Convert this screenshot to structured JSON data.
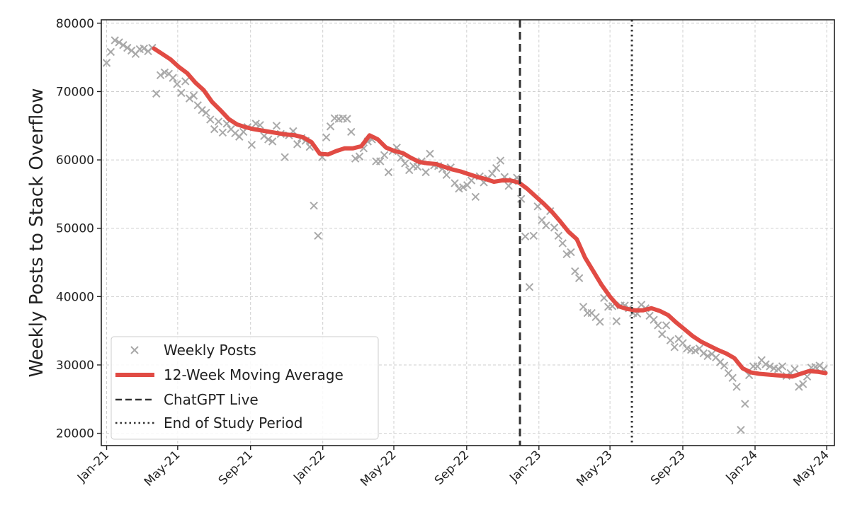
{
  "chart_data": {
    "type": "scatter",
    "title": "",
    "xlabel": "",
    "ylabel": "Weekly Posts to Stack Overflow",
    "ylim": [
      18200,
      80500
    ],
    "yticks": [
      20000,
      30000,
      40000,
      50000,
      60000,
      70000,
      80000
    ],
    "xlim": [
      "2020-12-23",
      "2024-05-14"
    ],
    "xticks": [
      {
        "date": "2021-01-01",
        "label": "Jan-21"
      },
      {
        "date": "2021-05-01",
        "label": "May-21"
      },
      {
        "date": "2021-09-01",
        "label": "Sep-21"
      },
      {
        "date": "2022-01-01",
        "label": "Jan-22"
      },
      {
        "date": "2022-05-01",
        "label": "May-22"
      },
      {
        "date": "2022-09-01",
        "label": "Sep-22"
      },
      {
        "date": "2023-01-01",
        "label": "Jan-23"
      },
      {
        "date": "2023-05-01",
        "label": "May-23"
      },
      {
        "date": "2023-09-01",
        "label": "Sep-23"
      },
      {
        "date": "2024-01-01",
        "label": "Jan-24"
      },
      {
        "date": "2024-05-01",
        "label": "May-24"
      }
    ],
    "grid": true,
    "legend_position": "bottom-left",
    "series": [
      {
        "name": "Weekly Posts",
        "type": "scatter",
        "color": "#a9a9a9",
        "points": [
          [
            "2021-01-01",
            74200
          ],
          [
            "2021-01-08",
            75800
          ],
          [
            "2021-01-15",
            77500
          ],
          [
            "2021-01-22",
            77200
          ],
          [
            "2021-01-29",
            76800
          ],
          [
            "2021-02-05",
            76400
          ],
          [
            "2021-02-12",
            76000
          ],
          [
            "2021-02-19",
            75500
          ],
          [
            "2021-02-26",
            76200
          ],
          [
            "2021-03-05",
            76300
          ],
          [
            "2021-03-12",
            75900
          ],
          [
            "2021-03-19",
            76400
          ],
          [
            "2021-03-26",
            69700
          ],
          [
            "2021-04-02",
            72400
          ],
          [
            "2021-04-09",
            72800
          ],
          [
            "2021-04-16",
            72600
          ],
          [
            "2021-04-23",
            72000
          ],
          [
            "2021-04-30",
            71100
          ],
          [
            "2021-05-07",
            69800
          ],
          [
            "2021-05-14",
            71500
          ],
          [
            "2021-05-21",
            69000
          ],
          [
            "2021-05-28",
            69400
          ],
          [
            "2021-06-04",
            68000
          ],
          [
            "2021-06-11",
            67300
          ],
          [
            "2021-06-18",
            66900
          ],
          [
            "2021-06-25",
            65900
          ],
          [
            "2021-07-02",
            64500
          ],
          [
            "2021-07-09",
            65600
          ],
          [
            "2021-07-16",
            64000
          ],
          [
            "2021-07-23",
            65300
          ],
          [
            "2021-07-30",
            64500
          ],
          [
            "2021-08-06",
            63900
          ],
          [
            "2021-08-13",
            63400
          ],
          [
            "2021-08-20",
            64100
          ],
          [
            "2021-08-27",
            64800
          ],
          [
            "2021-09-03",
            62200
          ],
          [
            "2021-09-10",
            65300
          ],
          [
            "2021-09-17",
            65100
          ],
          [
            "2021-09-24",
            63500
          ],
          [
            "2021-10-01",
            63000
          ],
          [
            "2021-10-08",
            62700
          ],
          [
            "2021-10-15",
            65000
          ],
          [
            "2021-10-22",
            63800
          ],
          [
            "2021-10-29",
            60400
          ],
          [
            "2021-11-05",
            63600
          ],
          [
            "2021-11-12",
            64200
          ],
          [
            "2021-11-19",
            62300
          ],
          [
            "2021-11-26",
            63200
          ],
          [
            "2021-12-03",
            62800
          ],
          [
            "2021-12-10",
            61900
          ],
          [
            "2021-12-17",
            53300
          ],
          [
            "2021-12-24",
            48900
          ],
          [
            "2021-12-31",
            60400
          ],
          [
            "2022-01-07",
            63300
          ],
          [
            "2022-01-14",
            64900
          ],
          [
            "2022-01-21",
            66100
          ],
          [
            "2022-01-28",
            66000
          ],
          [
            "2022-02-04",
            66100
          ],
          [
            "2022-02-11",
            66000
          ],
          [
            "2022-02-18",
            64100
          ],
          [
            "2022-02-25",
            60200
          ],
          [
            "2022-03-04",
            60500
          ],
          [
            "2022-03-11",
            61700
          ],
          [
            "2022-03-18",
            62700
          ],
          [
            "2022-03-25",
            63000
          ],
          [
            "2022-04-01",
            59800
          ],
          [
            "2022-04-08",
            59800
          ],
          [
            "2022-04-15",
            60700
          ],
          [
            "2022-04-22",
            58200
          ],
          [
            "2022-04-29",
            61300
          ],
          [
            "2022-05-06",
            61800
          ],
          [
            "2022-05-13",
            60300
          ],
          [
            "2022-05-20",
            59500
          ],
          [
            "2022-05-27",
            58500
          ],
          [
            "2022-06-03",
            59100
          ],
          [
            "2022-06-10",
            59000
          ],
          [
            "2022-06-17",
            59800
          ],
          [
            "2022-06-24",
            58200
          ],
          [
            "2022-07-01",
            60900
          ],
          [
            "2022-07-08",
            59200
          ],
          [
            "2022-07-15",
            59100
          ],
          [
            "2022-07-22",
            58700
          ],
          [
            "2022-07-29",
            57800
          ],
          [
            "2022-08-05",
            58900
          ],
          [
            "2022-08-12",
            56600
          ],
          [
            "2022-08-19",
            55800
          ],
          [
            "2022-08-26",
            56000
          ],
          [
            "2022-09-02",
            56300
          ],
          [
            "2022-09-09",
            57000
          ],
          [
            "2022-09-16",
            54600
          ],
          [
            "2022-09-23",
            57600
          ],
          [
            "2022-09-30",
            56700
          ],
          [
            "2022-10-07",
            57300
          ],
          [
            "2022-10-14",
            58000
          ],
          [
            "2022-10-21",
            58800
          ],
          [
            "2022-10-28",
            59900
          ],
          [
            "2022-11-04",
            57500
          ],
          [
            "2022-11-11",
            56200
          ],
          [
            "2022-11-18",
            56900
          ],
          [
            "2022-11-25",
            57400
          ],
          [
            "2022-12-02",
            54300
          ],
          [
            "2022-12-09",
            48800
          ],
          [
            "2022-12-16",
            41400
          ],
          [
            "2022-12-23",
            48900
          ],
          [
            "2022-12-30",
            53200
          ],
          [
            "2023-01-06",
            51200
          ],
          [
            "2023-01-13",
            50400
          ],
          [
            "2023-01-20",
            52500
          ],
          [
            "2023-01-27",
            50100
          ],
          [
            "2023-02-03",
            48900
          ],
          [
            "2023-02-10",
            47800
          ],
          [
            "2023-02-17",
            46200
          ],
          [
            "2023-02-24",
            46500
          ],
          [
            "2023-03-03",
            43700
          ],
          [
            "2023-03-10",
            42700
          ],
          [
            "2023-03-17",
            38500
          ],
          [
            "2023-03-24",
            37600
          ],
          [
            "2023-03-31",
            37600
          ],
          [
            "2023-04-07",
            37000
          ],
          [
            "2023-04-14",
            36300
          ],
          [
            "2023-04-21",
            39800
          ],
          [
            "2023-04-28",
            38500
          ],
          [
            "2023-05-05",
            38600
          ],
          [
            "2023-05-12",
            36400
          ],
          [
            "2023-05-19",
            38700
          ],
          [
            "2023-05-26",
            38700
          ],
          [
            "2023-06-02",
            38300
          ],
          [
            "2023-06-09",
            37600
          ],
          [
            "2023-06-16",
            37500
          ],
          [
            "2023-06-23",
            38800
          ],
          [
            "2023-06-30",
            38300
          ],
          [
            "2023-07-07",
            37200
          ],
          [
            "2023-07-14",
            36600
          ],
          [
            "2023-07-21",
            35800
          ],
          [
            "2023-07-28",
            34500
          ],
          [
            "2023-08-04",
            35800
          ],
          [
            "2023-08-11",
            33600
          ],
          [
            "2023-08-18",
            32600
          ],
          [
            "2023-08-25",
            33800
          ],
          [
            "2023-09-01",
            33200
          ],
          [
            "2023-09-08",
            32400
          ],
          [
            "2023-09-15",
            32200
          ],
          [
            "2023-09-22",
            32100
          ],
          [
            "2023-09-29",
            32400
          ],
          [
            "2023-10-06",
            31700
          ],
          [
            "2023-10-13",
            31300
          ],
          [
            "2023-10-20",
            31600
          ],
          [
            "2023-10-27",
            31100
          ],
          [
            "2023-11-03",
            30400
          ],
          [
            "2023-11-10",
            29900
          ],
          [
            "2023-11-17",
            28800
          ],
          [
            "2023-11-24",
            28100
          ],
          [
            "2023-12-01",
            26800
          ],
          [
            "2023-12-08",
            20500
          ],
          [
            "2023-12-15",
            24300
          ],
          [
            "2023-12-22",
            28500
          ],
          [
            "2023-12-29",
            29800
          ],
          [
            "2024-01-05",
            29800
          ],
          [
            "2024-01-12",
            30700
          ],
          [
            "2024-01-19",
            30100
          ],
          [
            "2024-01-26",
            29800
          ],
          [
            "2024-02-02",
            29500
          ],
          [
            "2024-02-09",
            29400
          ],
          [
            "2024-02-16",
            29800
          ],
          [
            "2024-02-23",
            28400
          ],
          [
            "2024-03-01",
            28800
          ],
          [
            "2024-03-08",
            29400
          ],
          [
            "2024-03-15",
            26800
          ],
          [
            "2024-03-22",
            27200
          ],
          [
            "2024-03-29",
            28300
          ],
          [
            "2024-04-05",
            29600
          ],
          [
            "2024-04-12",
            29700
          ],
          [
            "2024-04-19",
            29900
          ],
          [
            "2024-04-26",
            29400
          ]
        ]
      },
      {
        "name": "12-Week Moving Average",
        "type": "line",
        "color": "#e14b44",
        "points": [
          [
            "2021-03-22",
            76300
          ],
          [
            "2021-04-05",
            75500
          ],
          [
            "2021-04-19",
            74700
          ],
          [
            "2021-05-03",
            73600
          ],
          [
            "2021-05-17",
            72700
          ],
          [
            "2021-05-31",
            71300
          ],
          [
            "2021-06-14",
            70200
          ],
          [
            "2021-06-28",
            68500
          ],
          [
            "2021-07-12",
            67300
          ],
          [
            "2021-07-26",
            66000
          ],
          [
            "2021-08-09",
            65200
          ],
          [
            "2021-08-23",
            64800
          ],
          [
            "2021-09-06",
            64500
          ],
          [
            "2021-09-20",
            64300
          ],
          [
            "2021-10-04",
            64100
          ],
          [
            "2021-10-18",
            63900
          ],
          [
            "2021-11-01",
            63700
          ],
          [
            "2021-11-15",
            63600
          ],
          [
            "2021-11-29",
            63300
          ],
          [
            "2021-12-13",
            62600
          ],
          [
            "2021-12-27",
            60900
          ],
          [
            "2022-01-10",
            60800
          ],
          [
            "2022-01-24",
            61300
          ],
          [
            "2022-02-07",
            61700
          ],
          [
            "2022-02-21",
            61700
          ],
          [
            "2022-03-07",
            62000
          ],
          [
            "2022-03-21",
            63600
          ],
          [
            "2022-04-04",
            63000
          ],
          [
            "2022-04-18",
            61800
          ],
          [
            "2022-05-02",
            61300
          ],
          [
            "2022-05-16",
            61000
          ],
          [
            "2022-05-30",
            60300
          ],
          [
            "2022-06-13",
            59700
          ],
          [
            "2022-06-27",
            59500
          ],
          [
            "2022-07-11",
            59400
          ],
          [
            "2022-07-25",
            59000
          ],
          [
            "2022-08-08",
            58600
          ],
          [
            "2022-08-22",
            58300
          ],
          [
            "2022-09-05",
            57900
          ],
          [
            "2022-09-19",
            57500
          ],
          [
            "2022-10-03",
            57200
          ],
          [
            "2022-10-17",
            56800
          ],
          [
            "2022-10-31",
            57000
          ],
          [
            "2022-11-14",
            57000
          ],
          [
            "2022-11-28",
            56700
          ],
          [
            "2022-12-12",
            55800
          ],
          [
            "2022-12-26",
            54700
          ],
          [
            "2023-01-09",
            53600
          ],
          [
            "2023-01-23",
            52400
          ],
          [
            "2023-02-06",
            51000
          ],
          [
            "2023-02-20",
            49500
          ],
          [
            "2023-03-06",
            48400
          ],
          [
            "2023-03-20",
            45700
          ],
          [
            "2023-04-03",
            43700
          ],
          [
            "2023-04-17",
            41700
          ],
          [
            "2023-05-01",
            40000
          ],
          [
            "2023-05-15",
            38600
          ],
          [
            "2023-05-29",
            38200
          ],
          [
            "2023-06-12",
            38000
          ],
          [
            "2023-06-26",
            38000
          ],
          [
            "2023-07-10",
            38300
          ],
          [
            "2023-07-24",
            37900
          ],
          [
            "2023-08-07",
            37300
          ],
          [
            "2023-08-21",
            36200
          ],
          [
            "2023-09-04",
            35200
          ],
          [
            "2023-09-18",
            34200
          ],
          [
            "2023-10-02",
            33400
          ],
          [
            "2023-10-16",
            32800
          ],
          [
            "2023-10-30",
            32200
          ],
          [
            "2023-11-13",
            31700
          ],
          [
            "2023-11-27",
            31000
          ],
          [
            "2023-12-11",
            29500
          ],
          [
            "2023-12-25",
            28900
          ],
          [
            "2024-01-08",
            28700
          ],
          [
            "2024-01-22",
            28600
          ],
          [
            "2024-02-05",
            28500
          ],
          [
            "2024-02-19",
            28400
          ],
          [
            "2024-03-04",
            28300
          ],
          [
            "2024-03-18",
            28700
          ],
          [
            "2024-04-01",
            29100
          ],
          [
            "2024-04-15",
            29000
          ],
          [
            "2024-04-29",
            28800
          ]
        ]
      },
      {
        "name": "ChatGPT Live",
        "type": "vline",
        "style": "dashed",
        "color": "#333333",
        "x": "2022-11-30"
      },
      {
        "name": "End of Study Period",
        "type": "vline",
        "style": "dotted",
        "color": "#333333",
        "x": "2023-06-07"
      }
    ]
  }
}
